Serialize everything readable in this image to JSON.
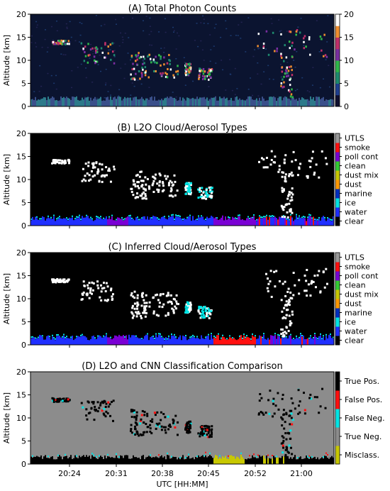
{
  "figure": {
    "shared_xlabel": "UTC [HH:MM]",
    "x_ticks": [
      "20:24",
      "20:31",
      "20:38",
      "20:45",
      "20:52",
      "21:00"
    ]
  },
  "chart_data": [
    {
      "type": "heatmap",
      "title": "(A) Total Photon Counts",
      "ylabel": "Altitude [km]",
      "xlabel": "",
      "ylim": [
        0,
        20
      ],
      "y_ticks": [
        "0",
        "5",
        "10",
        "15",
        "20"
      ],
      "colorbar": {
        "kind": "continuous",
        "range": [
          0,
          20
        ],
        "ticks": [
          "0",
          "5",
          "10",
          "15",
          "20"
        ],
        "colors": [
          "#101030",
          "#1f3f8f",
          "#1e8a6e",
          "#2fb84a",
          "#7a2fa0",
          "#c0306a",
          "#f08f30",
          "#ffffff"
        ]
      },
      "background": "#0b1430",
      "description_features": [
        "surface aerosol layer below 2 km",
        "cloud tops between 10 and 17 km"
      ]
    },
    {
      "type": "heatmap",
      "title": "(B) L2O Cloud/Aerosol Types",
      "ylabel": "Altitude [km]",
      "xlabel": "",
      "ylim": [
        0,
        20
      ],
      "y_ticks": [
        "0",
        "5",
        "10",
        "15",
        "20"
      ],
      "colorbar": {
        "kind": "categorical",
        "labels": [
          "clear",
          "water",
          "ice",
          "marine",
          "dust",
          "dust mix",
          "clean",
          "poll cont",
          "smoke",
          "UTLS"
        ],
        "colors": [
          "#000000",
          "#1f2fff",
          "#00e5e5",
          "#0030c0",
          "#ff9900",
          "#c8c800",
          "#33cc33",
          "#7a00d4",
          "#ff1010",
          "#9a9a9a"
        ]
      }
    },
    {
      "type": "heatmap",
      "title": "(C) Inferred Cloud/Aerosol Types",
      "ylabel": "Altitude [km]",
      "xlabel": "",
      "ylim": [
        0,
        20
      ],
      "y_ticks": [
        "0",
        "5",
        "10",
        "15",
        "20"
      ],
      "colorbar": {
        "kind": "categorical",
        "labels": [
          "clear",
          "water",
          "ice",
          "marine",
          "dust",
          "dust mix",
          "clean",
          "poll cont",
          "smoke",
          "UTLS"
        ],
        "colors": [
          "#000000",
          "#1f2fff",
          "#00e5e5",
          "#0030c0",
          "#ff9900",
          "#c8c800",
          "#33cc33",
          "#7a00d4",
          "#ff1010",
          "#9a9a9a"
        ]
      }
    },
    {
      "type": "heatmap",
      "title": "(D) L2O and CNN Classification Comparison",
      "ylabel": "Altitude [km]",
      "xlabel": "UTC [HH:MM]",
      "ylim": [
        0,
        20
      ],
      "y_ticks": [
        "0",
        "5",
        "10",
        "15",
        "20"
      ],
      "x_ticks": [
        "20:24",
        "20:31",
        "20:38",
        "20:45",
        "20:52",
        "21:00"
      ],
      "colorbar": {
        "kind": "categorical",
        "labels": [
          "Misclass.",
          "True Neg.",
          "False Neg.",
          "False Pos.",
          "True Pos."
        ],
        "colors": [
          "#c8c800",
          "#8c8c8c",
          "#00e5e5",
          "#ff1010",
          "#000000"
        ]
      },
      "background": "#8c8c8c"
    }
  ]
}
